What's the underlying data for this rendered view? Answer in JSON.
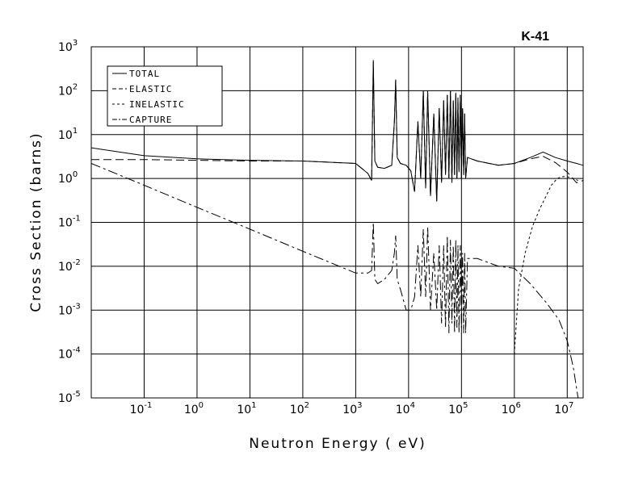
{
  "chart_data": {
    "type": "line",
    "title": "K-41",
    "xlabel": "Neutron Energy ( eV)",
    "ylabel": "Cross Section (barns)",
    "xscale": "log",
    "yscale": "log",
    "xlim": [
      0.01,
      20000000
    ],
    "ylim": [
      1e-05,
      1000
    ],
    "grid": true,
    "legend_position": "top-left",
    "x_ticks": [
      {
        "base": "10",
        "exp": "-1"
      },
      {
        "base": "10",
        "exp": "0"
      },
      {
        "base": "10",
        "exp": "1"
      },
      {
        "base": "10",
        "exp": "2"
      },
      {
        "base": "10",
        "exp": "3"
      },
      {
        "base": "10",
        "exp": "4"
      },
      {
        "base": "10",
        "exp": "5"
      },
      {
        "base": "10",
        "exp": "6"
      },
      {
        "base": "10",
        "exp": "7"
      }
    ],
    "y_ticks": [
      {
        "base": "10",
        "exp": "3"
      },
      {
        "base": "10",
        "exp": "2"
      },
      {
        "base": "10",
        "exp": "1"
      },
      {
        "base": "10",
        "exp": "0"
      },
      {
        "base": "10",
        "exp": "-1"
      },
      {
        "base": "10",
        "exp": "-2"
      },
      {
        "base": "10",
        "exp": "-3"
      },
      {
        "base": "10",
        "exp": "-4"
      },
      {
        "base": "10",
        "exp": "-5"
      }
    ],
    "series": [
      {
        "name": "TOTAL",
        "dash": "none",
        "x": [
          0.01,
          0.1,
          1,
          10,
          100,
          1000,
          1700,
          2000,
          2150,
          2300,
          2600,
          3500,
          4800,
          5400,
          5700,
          6100,
          7000,
          9000,
          11000,
          13000,
          15000,
          17000,
          19000,
          21000,
          23000,
          26000,
          30000,
          34000,
          38000,
          42000,
          46000,
          50000,
          54000,
          58000,
          62000,
          66000,
          70000,
          74000,
          78000,
          82000,
          86000,
          90000,
          95000,
          100000,
          105000,
          110000,
          115000,
          120000,
          130000,
          200000,
          500000,
          1000000,
          2000000,
          3500000,
          6000000,
          10000000,
          15000000,
          20000000
        ],
        "y": [
          5,
          3.3,
          2.8,
          2.6,
          2.5,
          2.2,
          1.3,
          0.9,
          500,
          2.5,
          1.8,
          1.7,
          2.0,
          20,
          180,
          3.0,
          2.2,
          2.0,
          1.5,
          0.5,
          20,
          1.0,
          100,
          0.6,
          100,
          0.4,
          30,
          0.3,
          40,
          0.8,
          60,
          1.2,
          80,
          1.0,
          100,
          0.8,
          60,
          1.2,
          90,
          1.0,
          70,
          1.4,
          80,
          1.0,
          40,
          1.2,
          30,
          1.0,
          3.0,
          2.5,
          2.0,
          2.2,
          3.0,
          4.0,
          3.0,
          2.5,
          2.2,
          2.0
        ]
      },
      {
        "name": "ELASTIC",
        "dash": "10,5",
        "x": [
          0.01,
          0.1,
          1,
          10,
          100,
          1000,
          1700,
          2000,
          2150,
          2300,
          2600,
          3500,
          4800,
          5400,
          5700,
          6100,
          7000,
          9000,
          11000,
          13000,
          15000,
          17000,
          19000,
          21000,
          23000,
          26000,
          30000,
          34000,
          38000,
          42000,
          46000,
          50000,
          54000,
          58000,
          62000,
          66000,
          70000,
          74000,
          78000,
          82000,
          86000,
          90000,
          95000,
          100000,
          105000,
          110000,
          115000,
          120000,
          130000,
          200000,
          500000,
          1000000,
          2000000,
          3500000,
          6000000,
          10000000,
          15000000,
          20000000
        ],
        "y": [
          2.7,
          2.7,
          2.6,
          2.5,
          2.5,
          2.2,
          1.3,
          0.9,
          450,
          2.5,
          1.8,
          1.7,
          2.0,
          20,
          170,
          3.0,
          2.2,
          2.0,
          1.5,
          0.5,
          20,
          1.0,
          100,
          0.6,
          100,
          0.4,
          30,
          0.3,
          40,
          0.8,
          60,
          1.2,
          80,
          1.0,
          100,
          0.8,
          60,
          1.2,
          90,
          1.0,
          70,
          1.4,
          80,
          1.0,
          40,
          1.2,
          30,
          1.0,
          3.0,
          2.5,
          2.0,
          2.2,
          2.8,
          3.2,
          2.3,
          1.4,
          0.8,
          0.9
        ]
      },
      {
        "name": "INELASTIC",
        "dash": "3,3",
        "x": [
          1000000,
          1200000,
          1600000,
          2200000,
          3000000,
          4000000,
          5000000,
          6500000,
          8000000,
          10000000,
          13000000,
          16000000
        ],
        "y": [
          0.0001,
          0.003,
          0.02,
          0.08,
          0.2,
          0.4,
          0.7,
          1.0,
          1.1,
          1.1,
          1.0,
          0.9
        ]
      },
      {
        "name": "CAPTURE",
        "dash": "12,4,3,4",
        "x": [
          0.01,
          0.1,
          1,
          10,
          100,
          1000,
          1700,
          2000,
          2150,
          2300,
          2600,
          3500,
          4800,
          5400,
          5700,
          6100,
          7000,
          9000,
          11000,
          13000,
          15000,
          17000,
          19000,
          21000,
          23000,
          26000,
          30000,
          34000,
          38000,
          42000,
          46000,
          50000,
          54000,
          58000,
          62000,
          66000,
          70000,
          74000,
          78000,
          82000,
          86000,
          90000,
          95000,
          100000,
          105000,
          110000,
          115000,
          120000,
          130000,
          200000,
          500000,
          1000000,
          2000000,
          4000000,
          7000000,
          10000000,
          13000000,
          16000000,
          18000000
        ],
        "y": [
          2.2,
          0.7,
          0.22,
          0.07,
          0.022,
          0.007,
          0.007,
          0.008,
          0.1,
          0.005,
          0.004,
          0.005,
          0.008,
          0.02,
          0.05,
          0.005,
          0.003,
          0.001,
          0.001,
          0.002,
          0.03,
          0.002,
          0.07,
          0.002,
          0.08,
          0.001,
          0.02,
          0.001,
          0.03,
          0.0005,
          0.03,
          0.0004,
          0.05,
          0.0003,
          0.04,
          0.0005,
          0.03,
          0.0003,
          0.04,
          0.0004,
          0.03,
          0.0003,
          0.03,
          0.0004,
          0.02,
          0.0003,
          0.02,
          0.0003,
          0.015,
          0.015,
          0.01,
          0.009,
          0.004,
          0.0015,
          0.0006,
          0.0002,
          5e-05,
          1e-05,
          3e-06
        ]
      }
    ]
  }
}
